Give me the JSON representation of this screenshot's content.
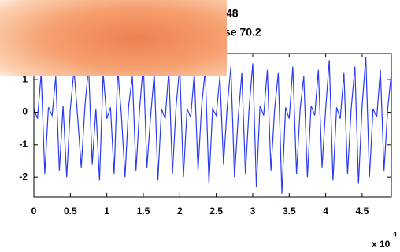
{
  "chart_data": {
    "type": "line",
    "title_lines": [
      "48",
      "se 70.2"
    ],
    "x_multiplier": "x 10",
    "x_multiplier_exp": "4",
    "x": [
      0,
      0.05,
      0.1,
      0.15,
      0.2,
      0.25,
      0.3,
      0.35,
      0.4,
      0.45,
      0.5,
      0.55,
      0.6,
      0.65,
      0.7,
      0.75,
      0.8,
      0.85,
      0.9,
      0.95,
      1,
      1.05,
      1.1,
      1.15,
      1.2,
      1.25,
      1.3,
      1.35,
      1.4,
      1.45,
      1.5,
      1.55,
      1.6,
      1.65,
      1.7,
      1.75,
      1.8,
      1.85,
      1.9,
      1.95,
      2,
      2.05,
      2.1,
      2.15,
      2.2,
      2.25,
      2.3,
      2.35,
      2.4,
      2.45,
      2.5,
      2.55,
      2.6,
      2.65,
      2.7,
      2.75,
      2.8,
      2.85,
      2.9,
      2.95,
      3,
      3.05,
      3.1,
      3.15,
      3.2,
      3.25,
      3.3,
      3.35,
      3.4,
      3.45,
      3.5,
      3.55,
      3.6,
      3.65,
      3.7,
      3.75,
      3.8,
      3.85,
      3.9,
      3.95,
      4,
      4.05,
      4.1,
      4.15,
      4.2,
      4.25,
      4.3,
      4.35,
      4.4,
      4.45,
      4.5,
      4.55,
      4.6,
      4.65,
      4.7,
      4.75,
      4.8,
      4.85,
      4.9
    ],
    "series": [
      {
        "color": "#2b3cf0",
        "values": [
          0.1,
          -0.2,
          1.2,
          -1.9,
          0.15,
          -0.1,
          1.1,
          -1.8,
          0.2,
          -2.0,
          0.1,
          1.3,
          -0.15,
          -1.7,
          0.2,
          1.4,
          -1.6,
          0.1,
          -2.1,
          1.2,
          -0.2,
          0.15,
          -1.9,
          1.3,
          -0.1,
          -2.0,
          0.2,
          1.1,
          -1.8,
          0.1,
          1.5,
          -1.7,
          -0.15,
          1.2,
          -2.1,
          0.1,
          -0.2,
          1.3,
          -1.9,
          0.2,
          1.4,
          -2.0,
          0.1,
          -0.15,
          1.2,
          -1.8,
          0.2,
          1.3,
          -2.2,
          0.1,
          -0.1,
          1.1,
          -1.6,
          0.15,
          1.4,
          -2.0,
          -0.2,
          1.2,
          -1.9,
          0.1,
          1.5,
          -2.3,
          0.2,
          -0.1,
          1.3,
          -1.8,
          0.1,
          1.2,
          -2.5,
          0.15,
          -0.2,
          1.4,
          -1.9,
          0.1,
          1.1,
          -2.0,
          0.2,
          -0.1,
          1.3,
          -1.7,
          0.1,
          1.6,
          -2.1,
          0.15,
          -0.2,
          1.2,
          -1.9,
          0.1,
          1.4,
          -2.2,
          0.2,
          1.7,
          -2.0,
          0.1,
          -0.15,
          1.3,
          -1.8,
          0.1,
          1.2
        ]
      }
    ],
    "xlim": [
      0,
      4.9
    ],
    "xticks": [
      0,
      0.5,
      1,
      1.5,
      2,
      2.5,
      3,
      3.5,
      4,
      4.5
    ],
    "ylim": [
      -2.6,
      1.8
    ],
    "yticks": [
      -2,
      -1,
      0,
      1
    ]
  }
}
